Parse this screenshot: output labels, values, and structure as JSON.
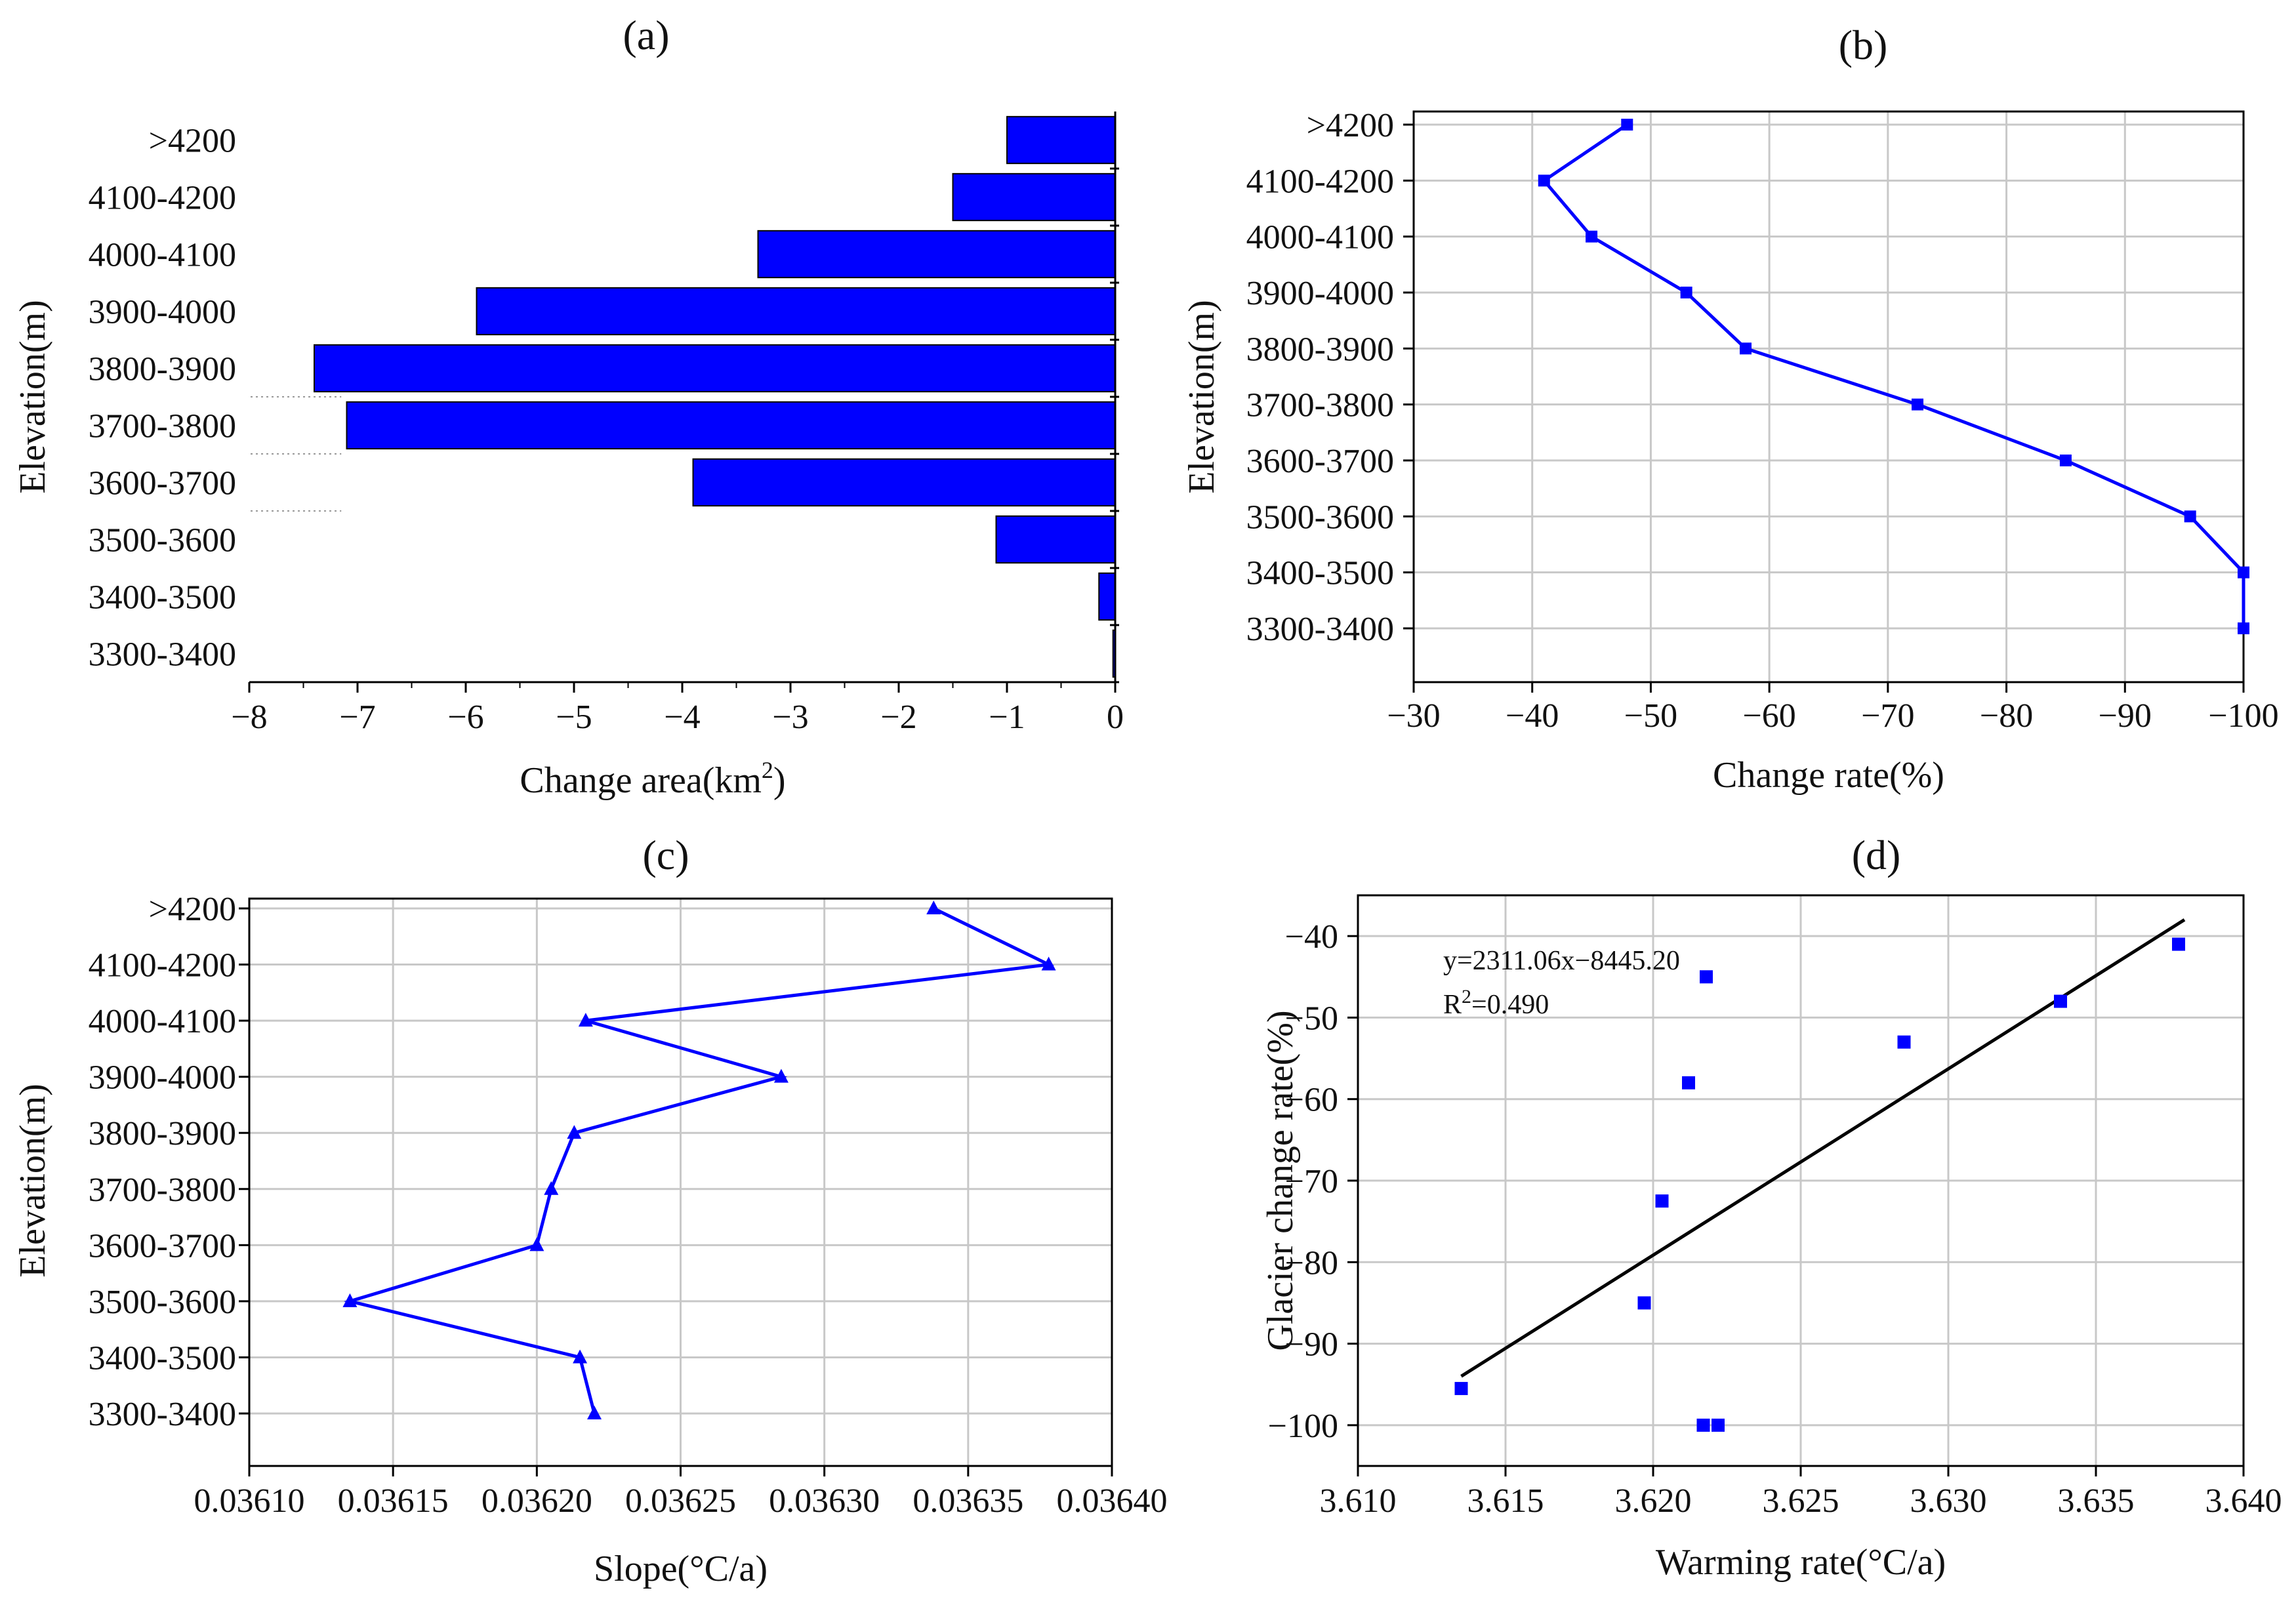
{
  "chart_data": [
    {
      "panel": "(a)",
      "type": "bar",
      "orientation": "horizontal",
      "categories": [
        "3300-3400",
        "3400-3500",
        "3500-3600",
        "3600-3700",
        "3700-3800",
        "3800-3900",
        "3900-4000",
        "4000-4100",
        "4100-4200",
        ">4200"
      ],
      "values": [
        -0.02,
        -0.15,
        -1.1,
        -3.9,
        -7.1,
        -7.4,
        -5.9,
        -3.3,
        -1.5,
        -1.0
      ],
      "xlabel": "Change area(km",
      "xlabel_sup": "2",
      "xlabel_end": ")",
      "ylabel": "Elevation(m)",
      "xlim": [
        -8,
        0
      ],
      "xticks": [
        -8,
        -7,
        -6,
        -5,
        -4,
        -3,
        -2,
        -1,
        0
      ],
      "xtick_labels": [
        "−8",
        "−7",
        "−6",
        "−5",
        "−4",
        "−3",
        "−2",
        "−1",
        "0"
      ],
      "grid": false,
      "color": "#0000ff"
    },
    {
      "panel": "(b)",
      "type": "line",
      "categories": [
        "3300-3400",
        "3400-3500",
        "3500-3600",
        "3600-3700",
        "3700-3800",
        "3800-3900",
        "3900-4000",
        "4000-4100",
        "4100-4200",
        ">4200"
      ],
      "values": [
        -100,
        -100,
        -95.5,
        -85,
        -72.5,
        -58,
        -53,
        -45,
        -41,
        -48
      ],
      "xlabel": "Change rate(%)",
      "ylabel": "Elevation(m)",
      "xlim": [
        -30,
        -100
      ],
      "xticks": [
        -30,
        -40,
        -50,
        -60,
        -70,
        -80,
        -90,
        -100
      ],
      "xtick_labels": [
        "−30",
        "−40",
        "−50",
        "−60",
        "−70",
        "−80",
        "−90",
        "−100"
      ],
      "marker": "square",
      "grid": true,
      "color": "#0000ff"
    },
    {
      "panel": "(c)",
      "type": "line",
      "categories": [
        "3300-3400",
        "3400-3500",
        "3500-3600",
        "3600-3700",
        "3700-3800",
        "3800-3900",
        "3900-4000",
        "4000-4100",
        "4100-4200",
        ">4200"
      ],
      "values": [
        0.03622,
        0.036215,
        0.036135,
        0.0362,
        0.036205,
        0.036213,
        0.036285,
        0.036217,
        0.036378,
        0.036338
      ],
      "xlabel": "Slope(°C/a)",
      "ylabel": "Elevation(m)",
      "xlim": [
        0.0361,
        0.0364
      ],
      "xticks": [
        0.0361,
        0.03615,
        0.0362,
        0.03625,
        0.0363,
        0.03635,
        0.0364
      ],
      "xtick_labels": [
        "0.03610",
        "0.03615",
        "0.03620",
        "0.03625",
        "0.03630",
        "0.03635",
        "0.03640"
      ],
      "marker": "triangle",
      "grid": true,
      "color": "#0000ff"
    },
    {
      "panel": "(d)",
      "type": "scatter",
      "points": [
        {
          "x": 3.6135,
          "y": -95.5
        },
        {
          "x": 3.6197,
          "y": -85
        },
        {
          "x": 3.6203,
          "y": -72.5
        },
        {
          "x": 3.6212,
          "y": -58
        },
        {
          "x": 3.6218,
          "y": -45
        },
        {
          "x": 3.6217,
          "y": -100
        },
        {
          "x": 3.6222,
          "y": -100
        },
        {
          "x": 3.6285,
          "y": -53
        },
        {
          "x": 3.6338,
          "y": -48
        },
        {
          "x": 3.6378,
          "y": -41
        }
      ],
      "fit_line": {
        "x": [
          3.6135,
          3.638
        ],
        "y": [
          -94,
          -38
        ]
      },
      "equation": "y=2311.06x−8445.20",
      "r2_prefix": "R",
      "r2_sup": "2",
      "r2_suffix": "=0.490",
      "xlabel": "Warming rate(°C/a)",
      "ylabel": "Glacier change rate(%)",
      "xlim": [
        3.61,
        3.64
      ],
      "ylim": [
        -105,
        -35
      ],
      "xticks": [
        3.61,
        3.615,
        3.62,
        3.625,
        3.63,
        3.635,
        3.64
      ],
      "xtick_labels": [
        "3.610",
        "3.615",
        "3.620",
        "3.625",
        "3.630",
        "3.635",
        "3.640"
      ],
      "yticks": [
        -40,
        -50,
        -60,
        -70,
        -80,
        -90,
        -100
      ],
      "ytick_labels": [
        "−40",
        "−50",
        "−60",
        "−70",
        "−80",
        "−90",
        "−100"
      ],
      "grid": true,
      "color": "#0000ff",
      "line_color": "#000000"
    }
  ]
}
